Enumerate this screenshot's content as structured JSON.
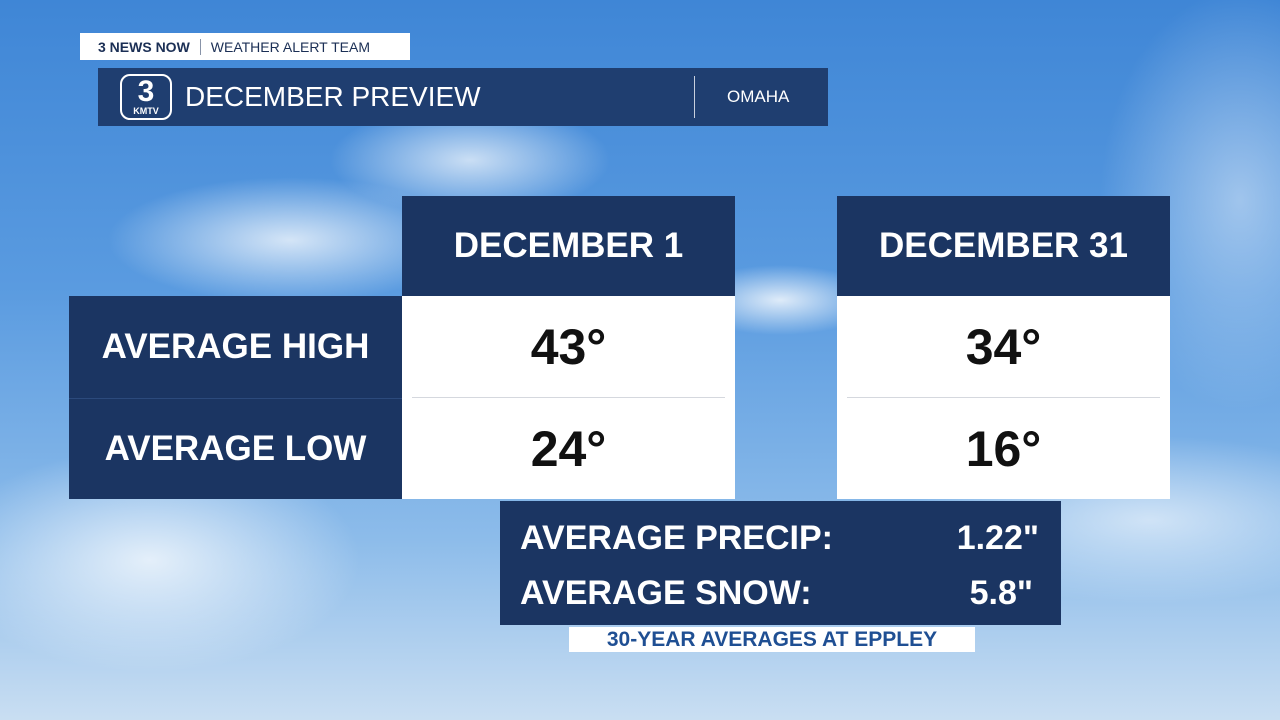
{
  "header": {
    "brand": "3 NEWS NOW",
    "team": "WEATHER ALERT TEAM"
  },
  "logo": {
    "number": "3",
    "label": "KMTV"
  },
  "title": "DECEMBER PREVIEW",
  "location": "OMAHA",
  "table": {
    "columns": [
      "DECEMBER 1",
      "DECEMBER 31"
    ],
    "rows": [
      {
        "label": "AVERAGE HIGH",
        "values": [
          "43°",
          "34°"
        ]
      },
      {
        "label": "AVERAGE LOW",
        "values": [
          "24°",
          "16°"
        ]
      }
    ]
  },
  "totals": [
    {
      "label": "AVERAGE PRECIP:",
      "value": "1.22\""
    },
    {
      "label": "AVERAGE SNOW:",
      "value": "5.8\""
    }
  ],
  "footer": "30-YEAR AVERAGES AT EPPLEY"
}
